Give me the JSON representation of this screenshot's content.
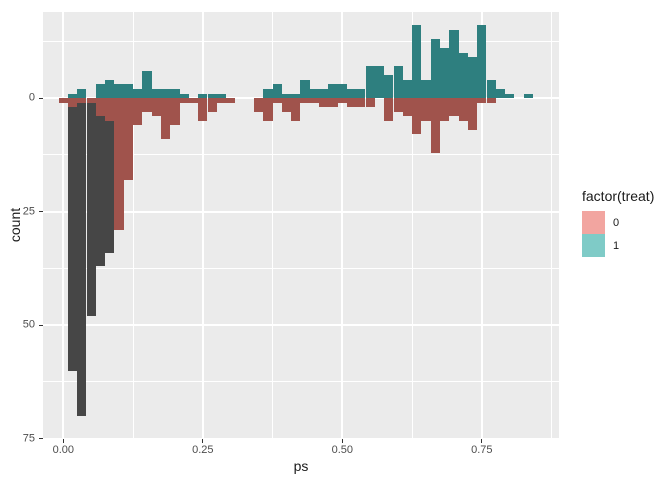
{
  "figure": {
    "background": "#FFFFFF",
    "panel_bg": "#EBEBEB",
    "grid_color": "#FFFFFF",
    "axis_text_color": "#4D4D4D",
    "tick_mark_color": "#333333"
  },
  "axes": {
    "x": {
      "label": "ps",
      "ticks": [
        {
          "value": 0.0,
          "label": "0.00"
        },
        {
          "value": 0.25,
          "label": "0.25"
        },
        {
          "value": 0.5,
          "label": "0.50"
        },
        {
          "value": 0.75,
          "label": "0.75"
        }
      ],
      "minor": [
        0.125,
        0.375,
        0.625,
        0.875
      ]
    },
    "y": {
      "label": "count",
      "ticks": [
        {
          "value": 0,
          "label": "0"
        },
        {
          "value": 25,
          "label": "25"
        },
        {
          "value": 50,
          "label": "50"
        },
        {
          "value": 75,
          "label": "75"
        }
      ],
      "minor": [
        -12.5,
        12.5,
        37.5,
        62.5
      ],
      "note": "mirrored histogram: treat=1 counts drawn upward, treat=0 counts drawn downward; tick labels show absolute counts"
    }
  },
  "legend": {
    "title": "factor(treat)",
    "items": [
      {
        "label": "0",
        "color": "#F2A5A0"
      },
      {
        "label": "1",
        "color": "#7FCBC7"
      }
    ]
  },
  "chart_data": {
    "type": "bar",
    "subtype": "mirrored_histogram",
    "title": "",
    "xlabel": "ps",
    "ylabel": "count",
    "xlim": [
      -0.036,
      0.889
    ],
    "ylim_counts_up_down": [
      19,
      75
    ],
    "grid": true,
    "legend_position": "right",
    "binwidth": 0.0167,
    "series": [
      {
        "name": "factor(treat)=1 histogram (upward)",
        "color": "#2E7F7F"
      },
      {
        "name": "factor(treat)=0 histogram (downward)",
        "color": "#A0534C"
      },
      {
        "name": "dark overlay histogram (downward)",
        "color": "#464646"
      }
    ],
    "bins_format": [
      "ps_center",
      "count_up_treat1",
      "count_down_treat0",
      "count_down_dark"
    ],
    "bins": [
      [
        0.0,
        0,
        1,
        0
      ],
      [
        0.0167,
        1,
        2,
        60
      ],
      [
        0.0333,
        2,
        1,
        70
      ],
      [
        0.05,
        0,
        1,
        48
      ],
      [
        0.0667,
        3,
        4,
        37
      ],
      [
        0.0833,
        4,
        5,
        34
      ],
      [
        0.1,
        3,
        29,
        0
      ],
      [
        0.1167,
        3,
        18,
        0
      ],
      [
        0.1333,
        2,
        6,
        0
      ],
      [
        0.15,
        6,
        3,
        0
      ],
      [
        0.1667,
        2,
        4,
        0
      ],
      [
        0.1833,
        2,
        9,
        0
      ],
      [
        0.2,
        2,
        6,
        0
      ],
      [
        0.2167,
        1,
        1,
        0
      ],
      [
        0.2333,
        0,
        1,
        0
      ],
      [
        0.25,
        1,
        5,
        0
      ],
      [
        0.2667,
        1,
        3,
        0
      ],
      [
        0.2833,
        1,
        1,
        0
      ],
      [
        0.3,
        0,
        1,
        0
      ],
      [
        0.35,
        0,
        3,
        0
      ],
      [
        0.3667,
        2,
        5,
        0
      ],
      [
        0.3833,
        3,
        1,
        0
      ],
      [
        0.4,
        1,
        3,
        0
      ],
      [
        0.4167,
        1,
        5,
        0
      ],
      [
        0.4333,
        4,
        1,
        0
      ],
      [
        0.45,
        2,
        1,
        0
      ],
      [
        0.4667,
        2,
        2,
        0
      ],
      [
        0.4833,
        3,
        2,
        0
      ],
      [
        0.5,
        3,
        1,
        0
      ],
      [
        0.5167,
        2,
        2,
        0
      ],
      [
        0.5333,
        2,
        2,
        0
      ],
      [
        0.55,
        7,
        2,
        0
      ],
      [
        0.5667,
        7,
        0,
        0
      ],
      [
        0.5833,
        5,
        5,
        0
      ],
      [
        0.6,
        7,
        3,
        0
      ],
      [
        0.6167,
        4,
        4,
        0
      ],
      [
        0.6333,
        16,
        8,
        0
      ],
      [
        0.65,
        4,
        5,
        0
      ],
      [
        0.6667,
        13,
        12,
        0
      ],
      [
        0.6833,
        11,
        5,
        0
      ],
      [
        0.7,
        15,
        4,
        0
      ],
      [
        0.7167,
        10,
        5,
        0
      ],
      [
        0.7333,
        9,
        7,
        0
      ],
      [
        0.75,
        16,
        1,
        0
      ],
      [
        0.7667,
        4,
        1,
        0
      ],
      [
        0.7833,
        2,
        0,
        0
      ],
      [
        0.8,
        1,
        0,
        0
      ],
      [
        0.8333,
        1,
        0,
        0
      ]
    ]
  }
}
